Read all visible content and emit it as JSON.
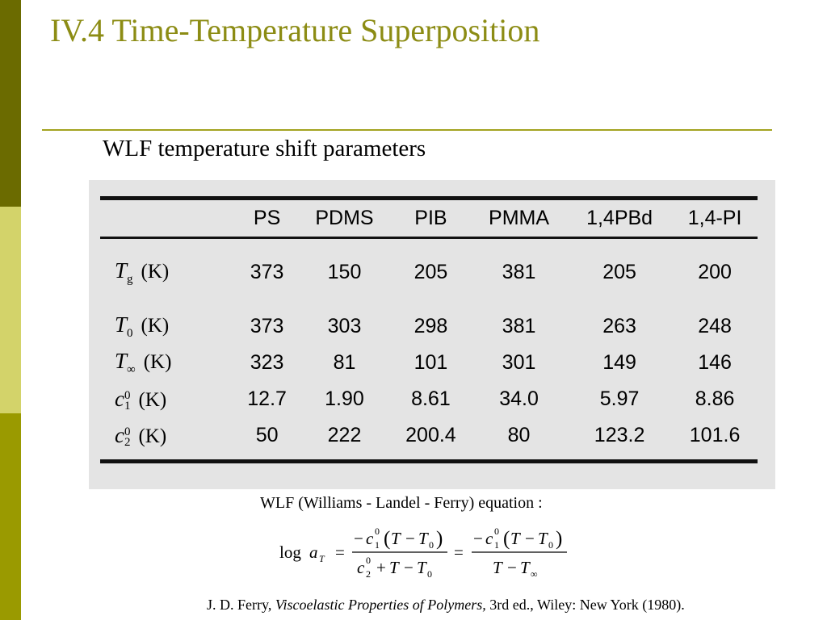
{
  "slide": {
    "title": "IV.4 Time-Temperature Superposition",
    "subtitle": "WLF temperature shift parameters"
  },
  "table": {
    "columns": [
      "PS",
      "PDMS",
      "PIB",
      "PMMA",
      "1,4PBd",
      "1,4-PI"
    ],
    "rows": [
      {
        "symbol": "T",
        "sub": "g",
        "sup": "",
        "unit": "(K)",
        "values": [
          "373",
          "150",
          "205",
          "381",
          "205",
          "200"
        ]
      },
      {
        "symbol": "T",
        "sub": "0",
        "sup": "",
        "unit": "(K)",
        "values": [
          "373",
          "303",
          "298",
          "381",
          "263",
          "248"
        ]
      },
      {
        "symbol": "T",
        "sub": "∞",
        "sup": "",
        "unit": "(K)",
        "values": [
          "323",
          "81",
          "101",
          "301",
          "149",
          "146"
        ]
      },
      {
        "symbol": "c",
        "sub": "1",
        "sup": "0",
        "unit": "(K)",
        "values": [
          "12.7",
          "1.90",
          "8.61",
          "34.0",
          "5.97",
          "8.86"
        ]
      },
      {
        "symbol": "c",
        "sub": "2",
        "sup": "0",
        "unit": "(K)",
        "values": [
          "50",
          "222",
          "200.4",
          "80",
          "123.2",
          "101.6"
        ]
      }
    ]
  },
  "equation": {
    "label": "WLF (Williams - Landel - Ferry) equation :",
    "log": "log",
    "a": "a",
    "a_sub": "T",
    "eq": "=",
    "minus": "−",
    "plus": "+",
    "c": "c",
    "T": "T",
    "sub1": "1",
    "sub2": "2",
    "sub0": "0",
    "sup0": "0",
    "subinf": "∞",
    "lparen": "(",
    "rparen": ")"
  },
  "reference": {
    "authors": "J. D. Ferry, ",
    "book": "Viscoelastic Properties of Polymers,",
    "rest": " 3rd ed., Wiley: New York (1980)."
  }
}
